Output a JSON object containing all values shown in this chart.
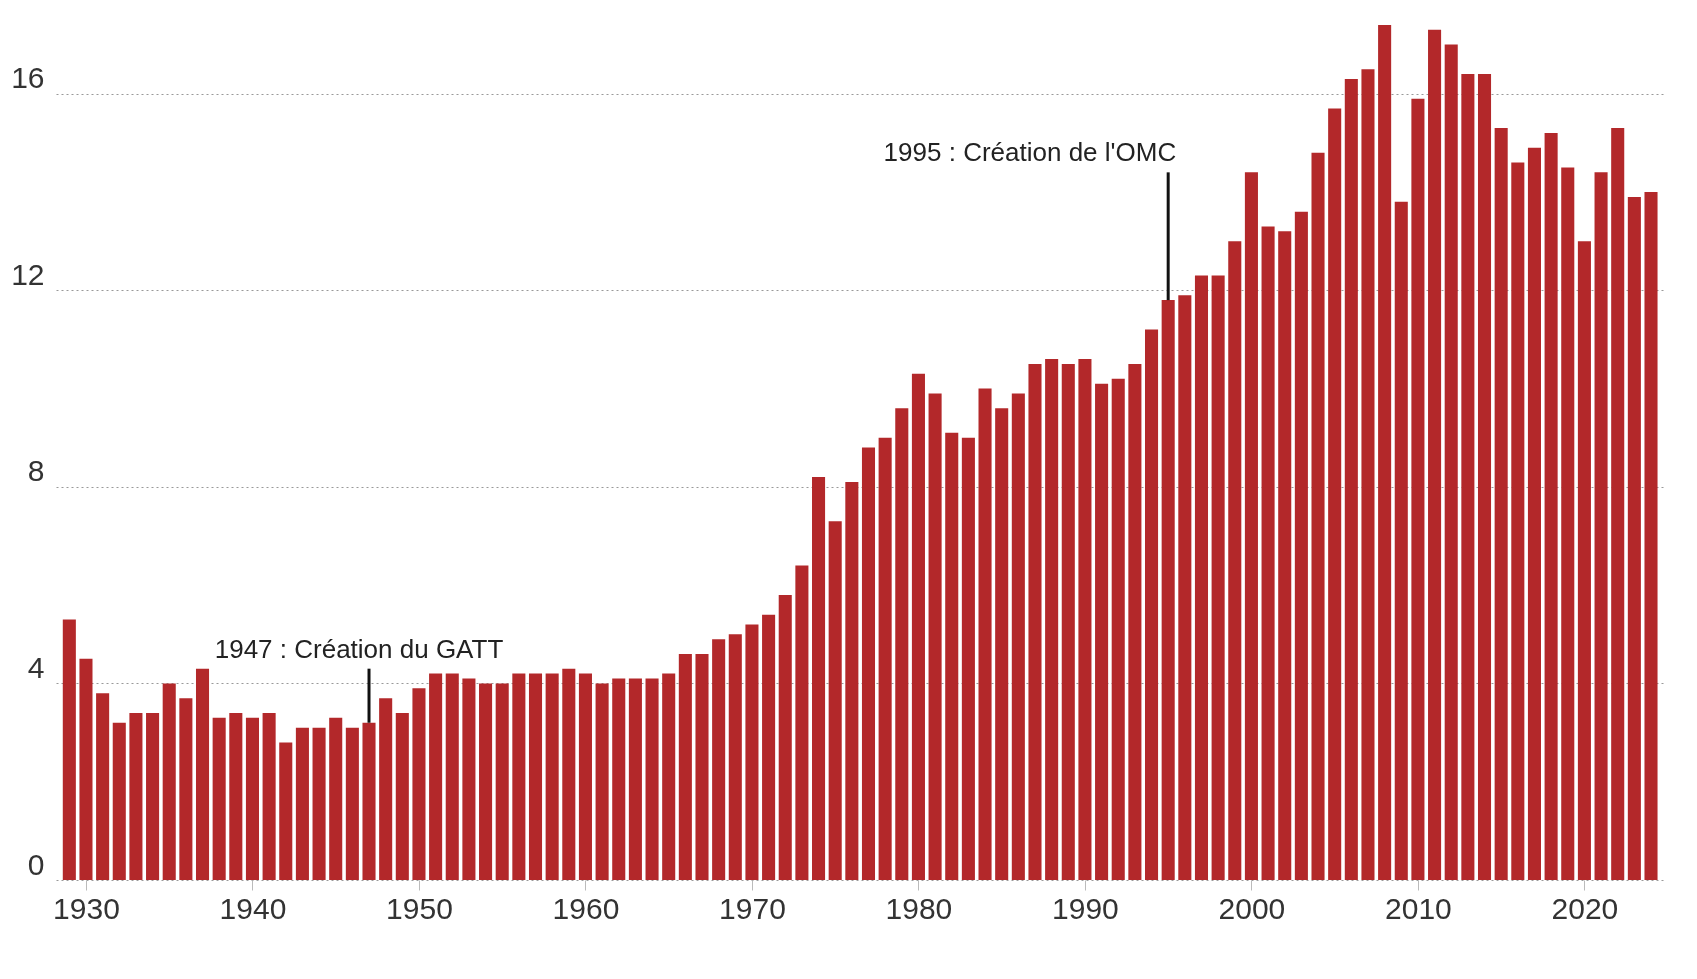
{
  "chart_data": {
    "type": "bar",
    "x": [
      1929,
      1930,
      1931,
      1932,
      1933,
      1934,
      1935,
      1936,
      1937,
      1938,
      1939,
      1940,
      1941,
      1942,
      1943,
      1944,
      1945,
      1946,
      1947,
      1948,
      1949,
      1950,
      1951,
      1952,
      1953,
      1954,
      1955,
      1956,
      1957,
      1958,
      1959,
      1960,
      1961,
      1962,
      1963,
      1964,
      1965,
      1966,
      1967,
      1968,
      1969,
      1970,
      1971,
      1972,
      1973,
      1974,
      1975,
      1976,
      1977,
      1978,
      1979,
      1980,
      1981,
      1982,
      1983,
      1984,
      1985,
      1986,
      1987,
      1988,
      1989,
      1990,
      1991,
      1992,
      1993,
      1994,
      1995,
      1996,
      1997,
      1998,
      1999,
      2000,
      2001,
      2002,
      2003,
      2004,
      2005,
      2006,
      2007,
      2008,
      2009,
      2010,
      2011,
      2012,
      2013,
      2014,
      2015,
      2016,
      2017,
      2018,
      2019,
      2020,
      2021,
      2022,
      2023,
      2024
    ],
    "values": [
      5.3,
      4.5,
      3.8,
      3.2,
      3.4,
      3.4,
      4.0,
      3.7,
      4.3,
      3.3,
      3.4,
      3.3,
      3.4,
      2.8,
      3.1,
      3.1,
      3.3,
      3.1,
      3.2,
      3.7,
      3.4,
      3.9,
      4.2,
      4.2,
      4.1,
      4.0,
      4.0,
      4.2,
      4.2,
      4.2,
      4.3,
      4.2,
      4.0,
      4.1,
      4.1,
      4.1,
      4.2,
      4.6,
      4.6,
      4.9,
      5.0,
      5.2,
      5.4,
      5.8,
      6.4,
      8.2,
      7.3,
      8.1,
      8.8,
      9.0,
      9.6,
      10.3,
      9.9,
      9.1,
      9.0,
      10.0,
      9.6,
      9.9,
      10.5,
      10.6,
      10.5,
      10.6,
      10.1,
      10.2,
      10.5,
      11.2,
      11.8,
      11.9,
      12.3,
      12.3,
      13.0,
      14.4,
      13.3,
      13.2,
      13.6,
      14.8,
      15.7,
      16.3,
      16.5,
      17.4,
      13.8,
      15.9,
      17.3,
      17.0,
      16.4,
      16.4,
      15.3,
      14.6,
      14.9,
      15.2,
      14.5,
      13.0,
      14.4,
      15.3,
      13.9,
      14.0
    ],
    "color": "#b3282a",
    "xlim": [
      1928.5,
      2024.6
    ],
    "xticks": [
      1930,
      1940,
      1950,
      1960,
      1970,
      1980,
      1990,
      2000,
      2010,
      2020
    ],
    "ylim": [
      0,
      17.5
    ],
    "yticks": [
      0,
      4,
      8,
      12,
      16
    ],
    "grid": "y",
    "annotations": [
      {
        "text": "1947 : Création du GATT",
        "x": 1947,
        "y": 3.2
      },
      {
        "text": "1995 : Création de l'OMC",
        "x": 1995,
        "y": 11.8
      }
    ]
  }
}
